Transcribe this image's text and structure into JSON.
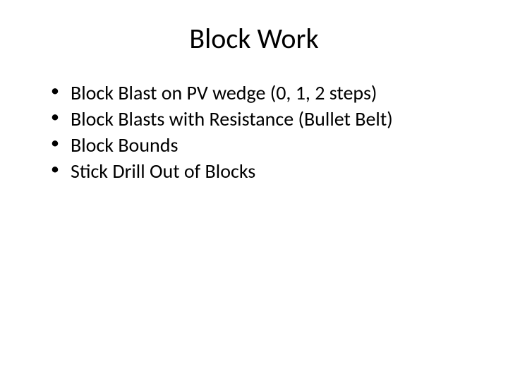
{
  "slide": {
    "title": "Block Work",
    "title_fontsize": 40,
    "body_fontsize": 28,
    "background_color": "#ffffff",
    "text_color": "#000000",
    "bullets": [
      "Block Blast on PV wedge (0, 1, 2 steps)",
      "Block Blasts with Resistance (Bullet Belt)",
      "Block Bounds",
      "Stick Drill Out of Blocks"
    ]
  }
}
